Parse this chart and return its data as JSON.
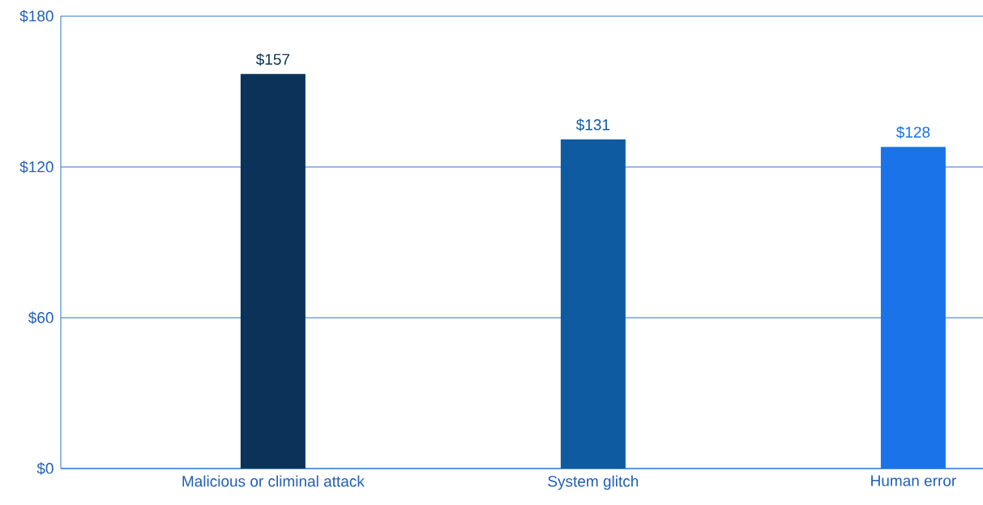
{
  "chart_data": {
    "type": "bar",
    "categories": [
      "Malicious or climinal attack",
      "System glitch",
      "Human error"
    ],
    "values": [
      157,
      131,
      128
    ],
    "colors": [
      "#0b3359",
      "#0f5ba1",
      "#1a73e8"
    ],
    "value_labels": [
      "$157",
      "$131",
      "$128"
    ],
    "ylim": [
      0,
      180
    ],
    "yticks": [
      {
        "value": 0,
        "label": "$0"
      },
      {
        "value": 60,
        "label": "$60"
      },
      {
        "value": 120,
        "label": "$120"
      },
      {
        "value": 180,
        "label": "$180"
      }
    ],
    "grid": "y"
  }
}
